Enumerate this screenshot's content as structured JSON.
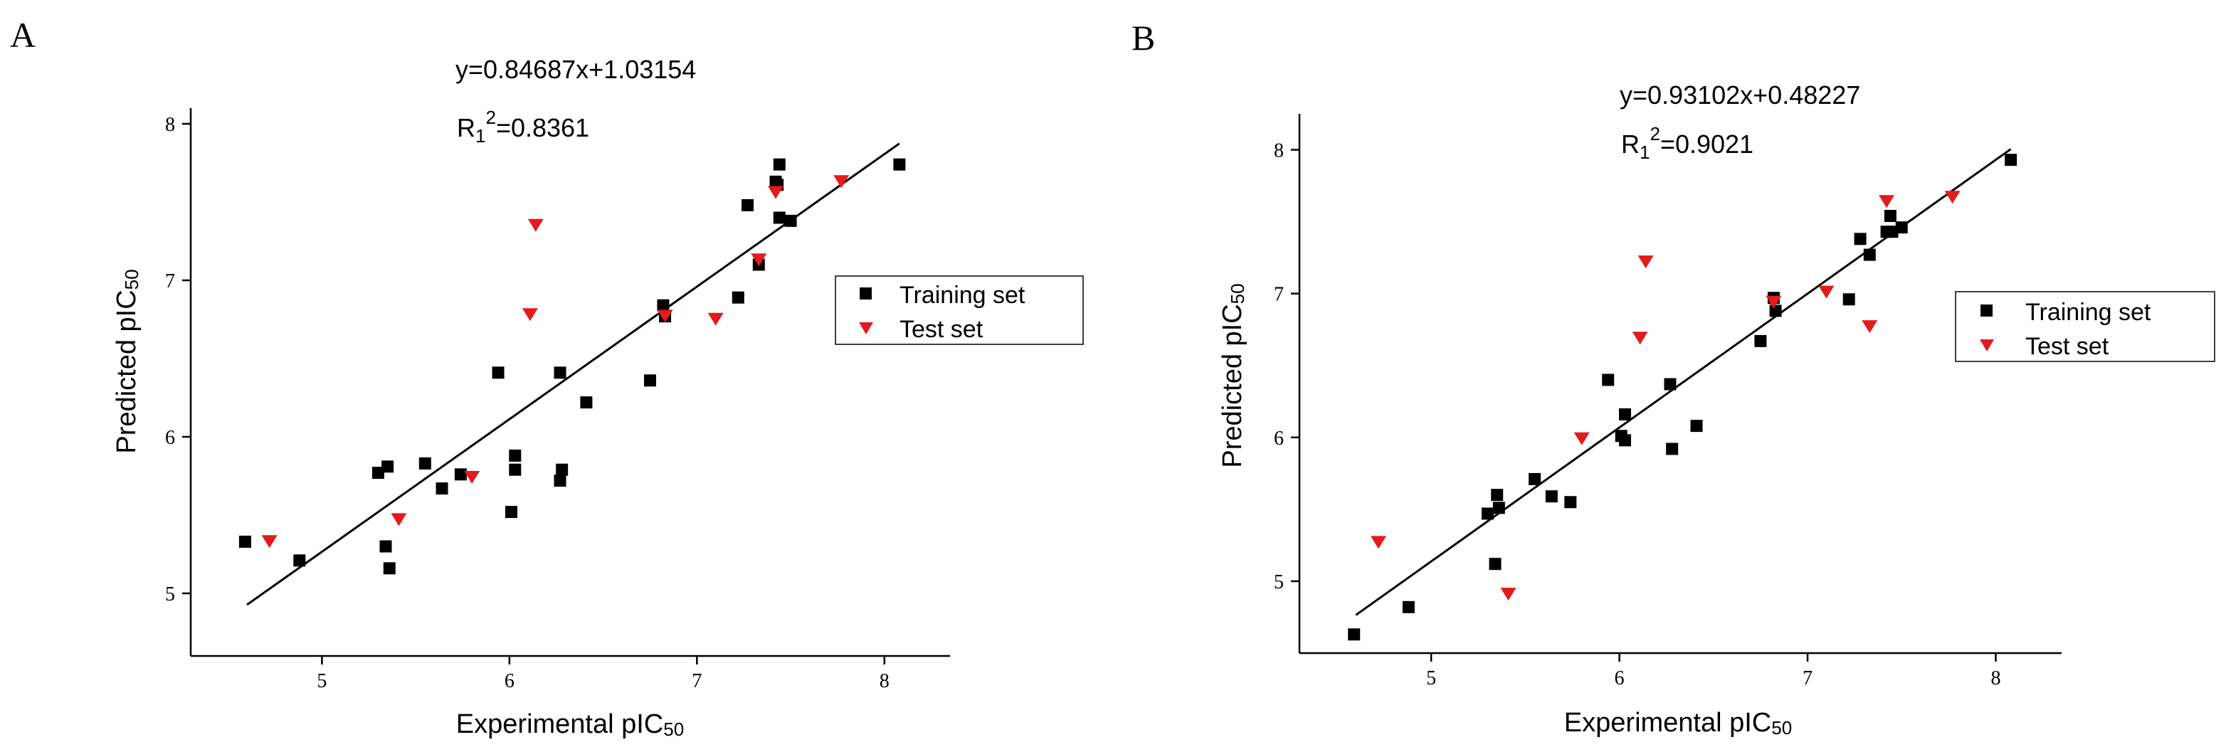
{
  "colors": {
    "training": "#000000",
    "test": "#e41a1c",
    "axis": "#000000",
    "fit_line": "#000000"
  },
  "chart_data": [
    {
      "type": "scatter",
      "panel_label": "A",
      "equation": "y=0.84687x+1.03154",
      "r2_prefix": "R",
      "r2_sub": "1",
      "r2_sup": "2",
      "r2_value": "=0.8361",
      "xlabel_main": "Experimental pIC",
      "xlabel_sub": "50",
      "ylabel_main": "Predicted pIC",
      "ylabel_sub": "50",
      "xlim": [
        4.3,
        8.35
      ],
      "ylim": [
        4.6,
        8.1
      ],
      "xticks": [
        5,
        6,
        7,
        8
      ],
      "yticks": [
        5,
        6,
        7,
        8
      ],
      "fit": {
        "slope": 0.84687,
        "intercept": 1.03154,
        "x_range": [
          4.6,
          8.08
        ]
      },
      "legend_entries": [
        "Training set",
        "Test set"
      ],
      "series": [
        {
          "name": "Training set",
          "points": [
            [
              4.59,
              5.33
            ],
            [
              4.88,
              5.21
            ],
            [
              5.3,
              5.77
            ],
            [
              5.34,
              5.3
            ],
            [
              5.35,
              5.81
            ],
            [
              5.36,
              5.16
            ],
            [
              5.55,
              5.83
            ],
            [
              5.64,
              5.67
            ],
            [
              5.74,
              5.76
            ],
            [
              5.94,
              6.41
            ],
            [
              6.01,
              5.52
            ],
            [
              6.03,
              5.88
            ],
            [
              6.03,
              5.79
            ],
            [
              6.27,
              6.41
            ],
            [
              6.27,
              5.72
            ],
            [
              6.28,
              5.79
            ],
            [
              6.41,
              6.22
            ],
            [
              6.75,
              6.36
            ],
            [
              6.82,
              6.84
            ],
            [
              6.83,
              6.77
            ],
            [
              7.22,
              6.89
            ],
            [
              7.27,
              7.48
            ],
            [
              7.33,
              7.1
            ],
            [
              7.42,
              7.63
            ],
            [
              7.43,
              7.61
            ],
            [
              7.44,
              7.74
            ],
            [
              7.44,
              7.4
            ],
            [
              7.5,
              7.38
            ],
            [
              8.08,
              7.74
            ]
          ]
        },
        {
          "name": "Test set",
          "points": [
            [
              4.72,
              5.34
            ],
            [
              5.41,
              5.48
            ],
            [
              5.8,
              5.75
            ],
            [
              6.11,
              6.79
            ],
            [
              6.14,
              7.36
            ],
            [
              6.83,
              6.78
            ],
            [
              7.1,
              6.76
            ],
            [
              7.33,
              7.14
            ],
            [
              7.42,
              7.57
            ],
            [
              7.77,
              7.64
            ]
          ]
        }
      ]
    },
    {
      "type": "scatter",
      "panel_label": "B",
      "equation": "y=0.93102x+0.48227",
      "r2_prefix": "R",
      "r2_sub": "1",
      "r2_sup": "2",
      "r2_value": "=0.9021",
      "xlabel_main": "Experimental pIC",
      "xlabel_sub": "50",
      "ylabel_main": "Predicted pIC",
      "ylabel_sub": "50",
      "xlim": [
        4.3,
        8.35
      ],
      "ylim": [
        4.5,
        8.25
      ],
      "xticks": [
        5,
        6,
        7,
        8
      ],
      "yticks": [
        5,
        6,
        7,
        8
      ],
      "fit": {
        "slope": 0.93102,
        "intercept": 0.48227,
        "x_range": [
          4.6,
          8.08
        ]
      },
      "legend_entries": [
        "Training set",
        "Test set"
      ],
      "series": [
        {
          "name": "Training set",
          "points": [
            [
              4.59,
              4.63
            ],
            [
              4.88,
              4.82
            ],
            [
              5.3,
              5.47
            ],
            [
              5.34,
              5.12
            ],
            [
              5.35,
              5.6
            ],
            [
              5.36,
              5.51
            ],
            [
              5.55,
              5.71
            ],
            [
              5.64,
              5.59
            ],
            [
              5.74,
              5.55
            ],
            [
              5.94,
              6.4
            ],
            [
              6.01,
              6.01
            ],
            [
              6.03,
              5.98
            ],
            [
              6.03,
              6.16
            ],
            [
              6.27,
              6.37
            ],
            [
              6.28,
              5.92
            ],
            [
              6.41,
              6.08
            ],
            [
              6.75,
              6.67
            ],
            [
              6.82,
              6.97
            ],
            [
              6.83,
              6.88
            ],
            [
              7.22,
              6.96
            ],
            [
              7.28,
              7.38
            ],
            [
              7.33,
              7.27
            ],
            [
              7.42,
              7.43
            ],
            [
              7.44,
              7.54
            ],
            [
              7.45,
              7.43
            ],
            [
              7.5,
              7.46
            ],
            [
              8.08,
              7.93
            ]
          ]
        },
        {
          "name": "Test set",
          "points": [
            [
              4.72,
              5.28
            ],
            [
              5.41,
              4.92
            ],
            [
              5.8,
              6.0
            ],
            [
              6.11,
              6.7
            ],
            [
              6.14,
              7.23
            ],
            [
              6.82,
              6.95
            ],
            [
              7.1,
              7.02
            ],
            [
              7.33,
              6.78
            ],
            [
              7.42,
              7.65
            ],
            [
              7.77,
              7.68
            ]
          ]
        }
      ]
    }
  ]
}
